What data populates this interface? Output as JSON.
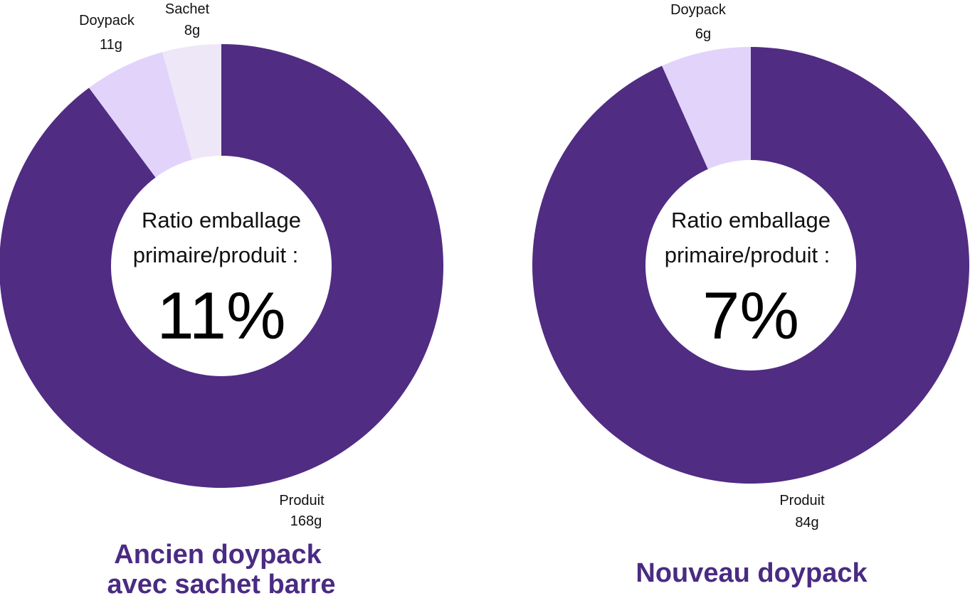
{
  "chart_data": [
    {
      "type": "pie",
      "variant": "donut",
      "slices": [
        {
          "category": "Produit",
          "value": 168,
          "value_label": "168g",
          "color": "#502c83"
        },
        {
          "category": "Doypack",
          "value": 11,
          "value_label": "11g",
          "color": "#e2d3fb"
        },
        {
          "category": "Sachet",
          "value": 8,
          "value_label": "8g",
          "color": "#ede7f7"
        }
      ],
      "center": {
        "line1": "Ratio emballage",
        "line2": "primaire/produit :",
        "value": "11%"
      },
      "caption": [
        "Ancien doypack",
        "avec sachet barre"
      ],
      "caption_color": "#4a2b82"
    },
    {
      "type": "pie",
      "variant": "donut",
      "slices": [
        {
          "category": "Produit",
          "value": 84,
          "value_label": "84g",
          "color": "#502c83"
        },
        {
          "category": "Doypack",
          "value": 6,
          "value_label": "6g",
          "color": "#e2d3fb"
        }
      ],
      "center": {
        "line1": "Ratio emballage",
        "line2": "primaire/produit :",
        "value": "7%"
      },
      "caption": [
        "Nouveau doypack"
      ],
      "caption_color": "#4a2b82"
    }
  ]
}
